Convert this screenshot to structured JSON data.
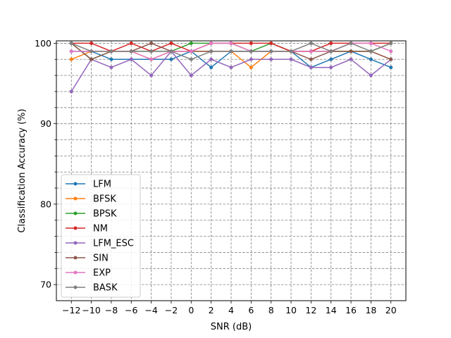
{
  "chart_data": {
    "type": "line",
    "xlabel": "SNR (dB)",
    "ylabel": "Classification Accuracy (%)",
    "x": [
      -12,
      -10,
      -8,
      -6,
      -4,
      -2,
      0,
      2,
      4,
      6,
      8,
      10,
      12,
      14,
      16,
      18,
      20
    ],
    "xlim": [
      -13.5,
      21.5
    ],
    "ylim": [
      68,
      100.3
    ],
    "yticks_major": [
      70,
      80,
      90,
      100
    ],
    "grid": true,
    "legend_position": "lower-left",
    "series": [
      {
        "name": "LFM",
        "color": "#1f77b4",
        "values": [
          99,
          99,
          98,
          98,
          98,
          98,
          99,
          97,
          99,
          99,
          99,
          99,
          97,
          98,
          99,
          98,
          97
        ]
      },
      {
        "name": "BFSK",
        "color": "#ff7f0e",
        "values": [
          98,
          99,
          99,
          99,
          98,
          99,
          99,
          99,
          99,
          97,
          99,
          99,
          99,
          99,
          99,
          99,
          98
        ]
      },
      {
        "name": "BPSK",
        "color": "#2ca02c",
        "values": [
          100,
          98,
          99,
          99,
          99,
          99,
          100,
          100,
          100,
          99,
          100,
          99,
          99,
          99,
          99,
          99,
          100
        ]
      },
      {
        "name": "NM",
        "color": "#d62728",
        "values": [
          100,
          100,
          99,
          100,
          99,
          100,
          99,
          100,
          100,
          100,
          100,
          99,
          99,
          100,
          100,
          100,
          100
        ]
      },
      {
        "name": "LFM_ESC",
        "color": "#9467bd",
        "values": [
          94,
          98,
          97,
          98,
          96,
          99,
          96,
          98,
          97,
          98,
          98,
          98,
          97,
          97,
          98,
          96,
          98
        ]
      },
      {
        "name": "SIN",
        "color": "#8c564b",
        "values": [
          100,
          98,
          99,
          99,
          100,
          99,
          99,
          99,
          99,
          99,
          99,
          99,
          98,
          99,
          99,
          99,
          98
        ]
      },
      {
        "name": "EXP",
        "color": "#e377c2",
        "values": [
          99,
          99,
          99,
          99,
          98,
          99,
          99,
          100,
          100,
          99,
          99,
          99,
          99,
          99,
          100,
          100,
          99
        ]
      },
      {
        "name": "BASK",
        "color": "#7f7f7f",
        "values": [
          100,
          99,
          99,
          99,
          99,
          99,
          98,
          99,
          99,
          99,
          99,
          99,
          100,
          99,
          100,
          99,
          100
        ]
      }
    ]
  }
}
